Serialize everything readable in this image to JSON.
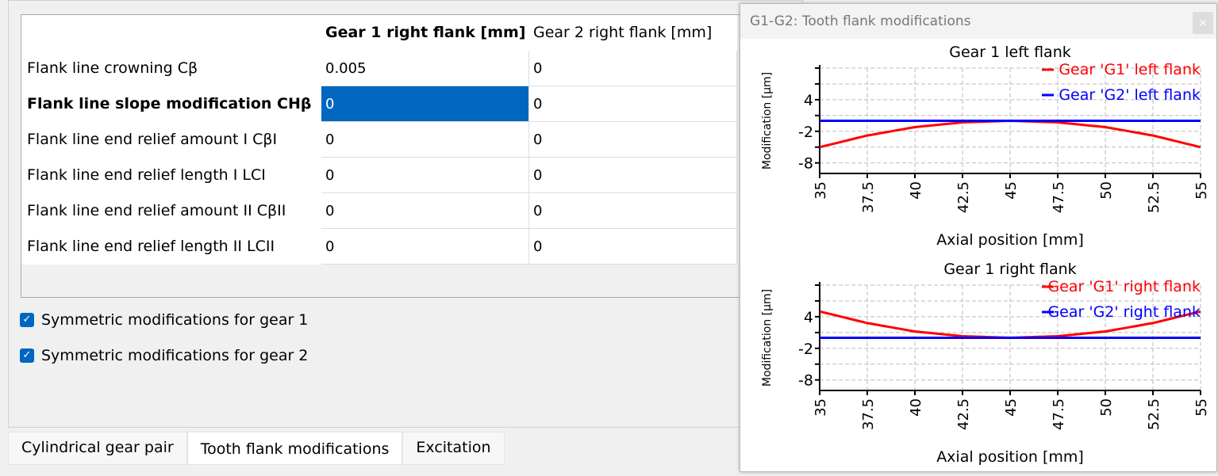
{
  "table": {
    "headers": [
      "Gear 1 right flank [mm]",
      "Gear 2 right flank [mm]"
    ],
    "rows": [
      {
        "label": "Flank line crowning Cβ",
        "values": [
          "0.005",
          "0"
        ]
      },
      {
        "label": "Flank line slope modification CHβ",
        "values": [
          "0",
          "0"
        ]
      },
      {
        "label": "Flank line end relief amount I CβI",
        "values": [
          "0",
          "0"
        ]
      },
      {
        "label": "Flank line end relief length I LCI",
        "values": [
          "0",
          "0"
        ]
      },
      {
        "label": "Flank line end relief amount II CβII",
        "values": [
          "0",
          "0"
        ]
      },
      {
        "label": "Flank line end relief length II LCII",
        "values": [
          "0",
          "0"
        ]
      }
    ]
  },
  "checkboxes": [
    {
      "label": "Symmetric modifications for gear 1",
      "checked": true
    },
    {
      "label": "Symmetric modifications for gear 2",
      "checked": true
    }
  ],
  "tabs": [
    "Cylindrical gear pair",
    "Tooth flank modifications",
    "Excitation"
  ],
  "window": {
    "title": "G1-G2: Tooth flank modifications",
    "close": "×"
  },
  "chart_data": [
    {
      "type": "line",
      "title": "Gear 1 left flank",
      "xlabel": "Axial position [mm]",
      "ylabel": "Modification [µm]",
      "xlim": [
        35,
        55
      ],
      "ylim": [
        -10,
        10
      ],
      "xticks": [
        "35",
        "37.5",
        "40",
        "42.5",
        "45",
        "47.5",
        "50",
        "52.5",
        "55"
      ],
      "yticks": [
        "4",
        "-2",
        "-8"
      ],
      "grid": true,
      "legend": "top-right",
      "series": [
        {
          "name": "Gear 'G1' left flank",
          "color": "#ff0000",
          "x": [
            35,
            37.5,
            40,
            42.5,
            45,
            47.5,
            50,
            52.5,
            55
          ],
          "y": [
            -5,
            -2.8,
            -1.2,
            -0.3,
            0,
            -0.3,
            -1.2,
            -2.8,
            -5
          ]
        },
        {
          "name": "Gear 'G2' left flank",
          "color": "#0000ff",
          "x": [
            35,
            55
          ],
          "y": [
            0,
            0
          ]
        }
      ]
    },
    {
      "type": "line",
      "title": "Gear 1 right flank",
      "xlabel": "Axial position [mm]",
      "ylabel": "Modification [µm]",
      "xlim": [
        35,
        55
      ],
      "ylim": [
        -10,
        10
      ],
      "xticks": [
        "35",
        "37.5",
        "40",
        "42.5",
        "45",
        "47.5",
        "50",
        "52.5",
        "55"
      ],
      "yticks": [
        "4",
        "-2",
        "-8"
      ],
      "grid": true,
      "legend": "top-right",
      "series": [
        {
          "name": "Gear 'G1' right flank",
          "color": "#ff0000",
          "x": [
            35,
            37.5,
            40,
            42.5,
            45,
            47.5,
            50,
            52.5,
            55
          ],
          "y": [
            5,
            2.8,
            1.2,
            0.3,
            0,
            0.3,
            1.2,
            2.8,
            5
          ]
        },
        {
          "name": "Gear 'G2' right flank",
          "color": "#0000ff",
          "x": [
            35,
            55
          ],
          "y": [
            0,
            0
          ]
        }
      ]
    }
  ]
}
